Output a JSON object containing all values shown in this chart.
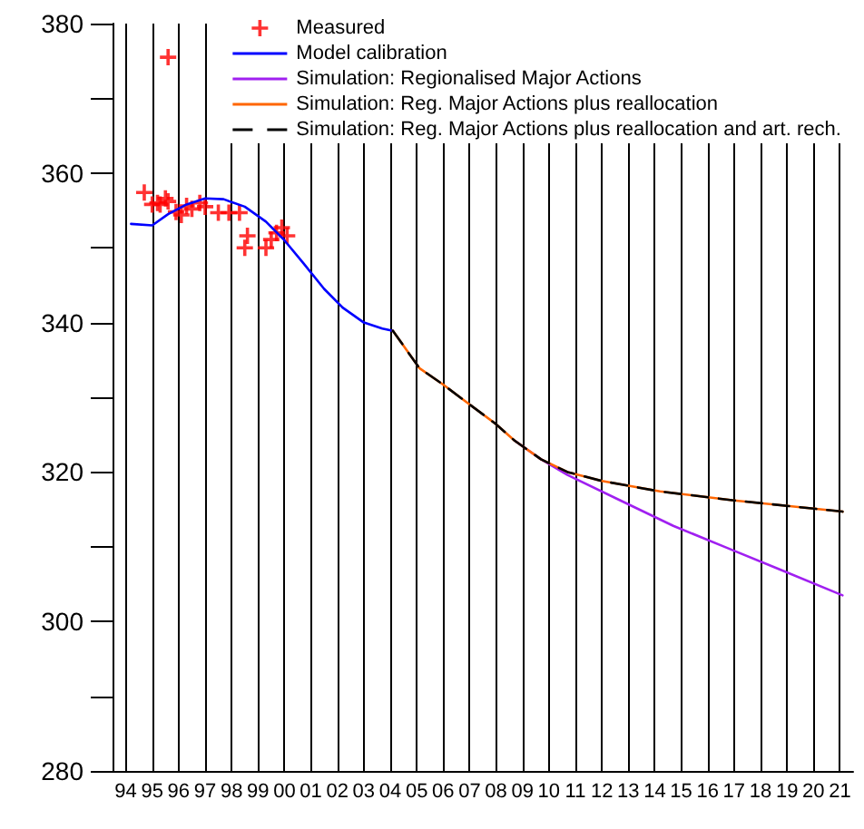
{
  "chart_data": {
    "type": "line",
    "xlim": [
      1993.5,
      2021.5
    ],
    "xticks": [
      {
        "value": 1994,
        "label": "94"
      },
      {
        "value": 1995,
        "label": "95"
      },
      {
        "value": 1996,
        "label": "96"
      },
      {
        "value": 1997,
        "label": "97"
      },
      {
        "value": 1998,
        "label": "98"
      },
      {
        "value": 1999,
        "label": "99"
      },
      {
        "value": 2000,
        "label": "00"
      },
      {
        "value": 2001,
        "label": "01"
      },
      {
        "value": 2002,
        "label": "02"
      },
      {
        "value": 2003,
        "label": "03"
      },
      {
        "value": 2004,
        "label": "04"
      },
      {
        "value": 2005,
        "label": "05"
      },
      {
        "value": 2006,
        "label": "06"
      },
      {
        "value": 2007,
        "label": "07"
      },
      {
        "value": 2008,
        "label": "08"
      },
      {
        "value": 2009,
        "label": "09"
      },
      {
        "value": 2010,
        "label": "10"
      },
      {
        "value": 2011,
        "label": "11"
      },
      {
        "value": 2012,
        "label": "12"
      },
      {
        "value": 2013,
        "label": "13"
      },
      {
        "value": 2014,
        "label": "14"
      },
      {
        "value": 2015,
        "label": "15"
      },
      {
        "value": 2016,
        "label": "16"
      },
      {
        "value": 2017,
        "label": "17"
      },
      {
        "value": 2018,
        "label": "18"
      },
      {
        "value": 2019,
        "label": "19"
      },
      {
        "value": 2020,
        "label": "20"
      },
      {
        "value": 2021,
        "label": "21"
      }
    ],
    "ylim": [
      280,
      380
    ],
    "yticks": [
      280,
      {
        "value": 290,
        "label": null
      },
      300,
      {
        "value": 310,
        "label": null
      },
      320,
      {
        "value": 330,
        "label": null
      },
      340,
      {
        "value": 350,
        "label": null
      },
      360,
      {
        "value": 370,
        "label": null
      },
      380
    ],
    "grid": "x",
    "legend": "top right",
    "series": [
      {
        "name": "Measured",
        "type": "scatter",
        "marker": "cross",
        "color": "#ff0000",
        "x": [
          1994.7,
          1995.0,
          1995.2,
          1995.3,
          1995.5,
          1995.6,
          1995.6,
          1995.9,
          1996.1,
          1996.3,
          1996.5,
          1996.8,
          1997.0,
          1997.5,
          1997.9,
          1998.3,
          1998.5,
          1998.6,
          1999.3,
          1999.5,
          1999.7,
          1999.9,
          2000.1
        ],
        "values": [
          357.4,
          355.8,
          356.0,
          355.8,
          356.6,
          356.2,
          375.5,
          354.8,
          354.4,
          355.6,
          355.2,
          356.0,
          355.5,
          354.7,
          354.7,
          354.7,
          350.0,
          351.6,
          350.0,
          351.1,
          352.0,
          352.7,
          351.6
        ]
      },
      {
        "name": "Model calibration",
        "color": "#0000ff",
        "line_style": "solid",
        "x": [
          1994.2,
          1995.0,
          1995.6,
          1996.3,
          1997.0,
          1997.7,
          1998.5,
          1999.3,
          2000.0,
          2000.7,
          2001.5,
          2002.2,
          2003.0,
          2003.7,
          2004.1
        ],
        "values": [
          353.2,
          353.0,
          354.5,
          355.8,
          356.6,
          356.5,
          355.5,
          353.5,
          351.0,
          348.0,
          344.5,
          342.0,
          340.0,
          339.2,
          338.9
        ]
      },
      {
        "name": "Simulation: Regionalised Major Actions",
        "color": "#a020f0",
        "line_style": "solid",
        "x": [
          2008.7,
          2009.7,
          2010.7,
          2012.7,
          2014.7,
          2016.7,
          2018.7,
          2021.1
        ],
        "values": [
          324.2,
          321.7,
          319.6,
          316.2,
          312.8,
          309.9,
          307.0,
          303.5
        ]
      },
      {
        "name": "Simulation: Reg. Major Actions plus reallocation",
        "color": "#ff6600",
        "line_style": "solid",
        "x": [
          2004.1,
          2005.1,
          2006.0,
          2006.9,
          2008.0,
          2008.7,
          2009.7,
          2010.7,
          2012.0,
          2014.2,
          2017.0,
          2021.1
        ],
        "values": [
          338.9,
          333.9,
          331.7,
          329.3,
          326.4,
          324.2,
          321.7,
          320.0,
          318.8,
          317.4,
          316.2,
          314.7
        ]
      },
      {
        "name": "Simulation: Reg. Major Actions plus reallocation and art. rech.",
        "color": "#000000",
        "line_style": "dashed",
        "x": [
          2004.1,
          2005.1,
          2006.0,
          2006.9,
          2008.0,
          2008.7,
          2009.7,
          2010.7,
          2012.0,
          2014.2,
          2017.0,
          2021.1
        ],
        "values": [
          338.9,
          333.9,
          331.7,
          329.3,
          326.4,
          324.2,
          321.7,
          320.0,
          318.8,
          317.4,
          316.2,
          314.7
        ]
      }
    ]
  }
}
